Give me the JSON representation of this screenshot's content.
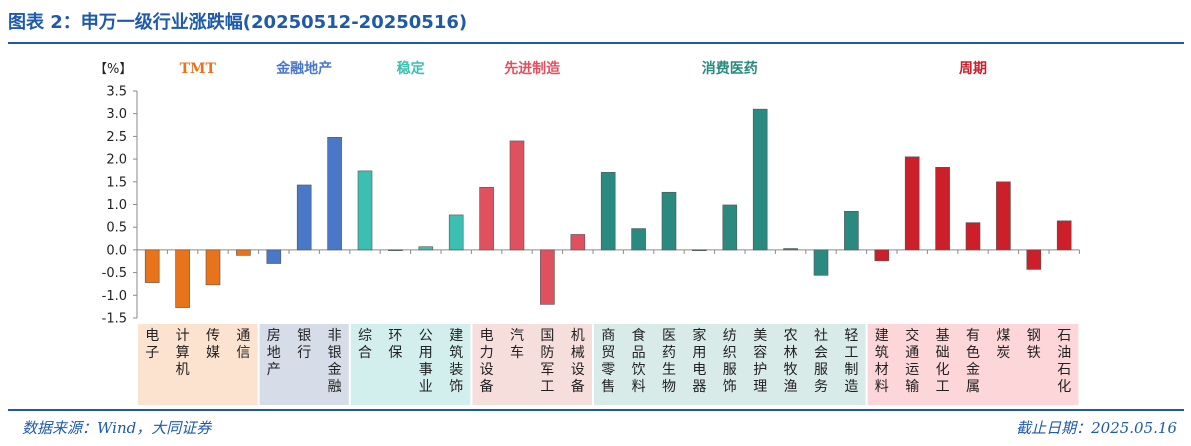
{
  "page": {
    "title": "图表 2：申万一级行业涨跌幅(20250512-20250516)",
    "source": "数据来源：Wind，大同证券",
    "date": "截止日期：2025.05.16"
  },
  "chart_data": {
    "type": "bar",
    "title": "图表 2：申万一级行业涨跌幅(20250512-20250516)",
    "ylabel": "【%】",
    "xlabel": "",
    "ylim": [
      -1.5,
      3.5
    ],
    "yticks": [
      "3.5",
      "3.0",
      "2.5",
      "2.0",
      "1.5",
      "1.0",
      "0.5",
      "0.0",
      "-0.5",
      "-1.0",
      "-1.5"
    ],
    "grid": false,
    "groups": [
      {
        "name": "TMT",
        "color": "#e8731a",
        "band": "#fbe3d0",
        "categories": [
          "电子",
          "计算机",
          "传媒",
          "通信"
        ],
        "values": [
          -0.72,
          -1.27,
          -0.77,
          -0.12
        ]
      },
      {
        "name": "金融地产",
        "color": "#4a78c9",
        "band": "#d6dce8",
        "categories": [
          "房地产",
          "银行",
          "非银金融"
        ],
        "values": [
          -0.3,
          1.43,
          2.48
        ]
      },
      {
        "name": "稳定",
        "color": "#3cbfb3",
        "band": "#d3efed",
        "categories": [
          "综合",
          "环保",
          "公用事业",
          "建筑装饰"
        ],
        "values": [
          1.74,
          -0.01,
          0.07,
          0.77
        ]
      },
      {
        "name": "先进制造",
        "color": "#e0515f",
        "band": "#f6dedd",
        "categories": [
          "电力设备",
          "汽车",
          "国防军工",
          "机械设备"
        ],
        "values": [
          1.38,
          2.4,
          -1.2,
          0.34
        ]
      },
      {
        "name": "消费医药",
        "color": "#2a8a80",
        "band": "#d9ebe9",
        "categories": [
          "商贸零售",
          "食品饮料",
          "医药生物",
          "家用电器",
          "纺织服饰",
          "美容护理",
          "农林牧渔",
          "社会服务",
          "轻工制造"
        ],
        "values": [
          1.71,
          0.47,
          1.27,
          -0.01,
          0.99,
          3.1,
          0.03,
          -0.56,
          0.85
        ]
      },
      {
        "name": "周期",
        "color": "#cc1f2a",
        "band": "#fcd6d8",
        "categories": [
          "建筑材料",
          "交通运输",
          "基础化工",
          "有色金属",
          "煤炭",
          "钢铁",
          "石油石化"
        ],
        "values": [
          -0.24,
          2.05,
          1.82,
          0.6,
          1.5,
          -0.43,
          0.64
        ]
      }
    ]
  }
}
